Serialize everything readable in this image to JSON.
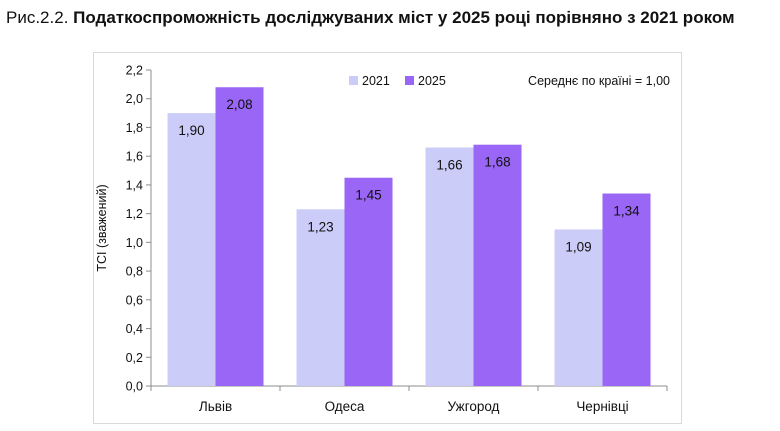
{
  "caption": {
    "prefix": "Рис.2.2.",
    "title": "Податкоспроможність досліджуваних міст у 2025 році порівняно з 2021 роком"
  },
  "chart_data": {
    "type": "bar",
    "categories": [
      "Львів",
      "Одеса",
      "Ужгород",
      "Чернівці"
    ],
    "series": [
      {
        "name": "2021",
        "values": [
          1.9,
          1.23,
          1.66,
          1.09
        ],
        "labels": [
          "1,90",
          "1,23",
          "1,66",
          "1,09"
        ],
        "color": "#ccccf8"
      },
      {
        "name": "2025",
        "values": [
          2.08,
          1.45,
          1.68,
          1.34
        ],
        "labels": [
          "2,08",
          "1,45",
          "1,68",
          "1,34"
        ],
        "color": "#9966f5"
      }
    ],
    "ylabel": "ТСІ (зважений)",
    "ylim": [
      0,
      2.2
    ],
    "yticks": [
      "0,0",
      "0,2",
      "0,4",
      "0,6",
      "0,8",
      "1,0",
      "1,2",
      "1,4",
      "1,6",
      "1,8",
      "2,0",
      "2,2"
    ],
    "annotation": "Середнє по країні = 1,00",
    "legend_position": "top-right",
    "grid": false
  }
}
